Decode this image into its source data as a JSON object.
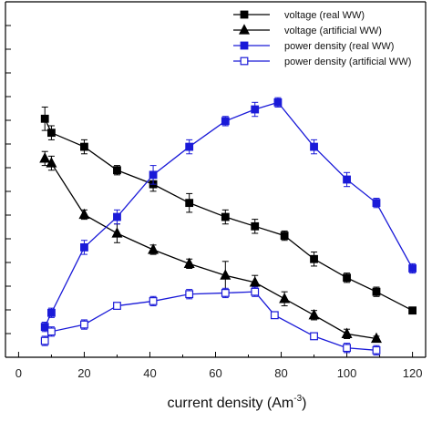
{
  "chart_data": {
    "type": "line",
    "title": "",
    "xlabel": "current density (Am",
    "xlabel_sup": "-3",
    "xlabel_close": ")",
    "ylabel": "",
    "xlim": [
      -4,
      124
    ],
    "ylim": [
      0,
      15.2
    ],
    "x_ticks": [
      0,
      20,
      40,
      60,
      80,
      100,
      120
    ],
    "y_tick_count": 15,
    "grid": false,
    "legend_position": "top-right",
    "series": [
      {
        "name": "voltage (real WW)",
        "color": "#000000",
        "marker": "square",
        "filled": true,
        "x": [
          8,
          10,
          20,
          30,
          41,
          52,
          63,
          72,
          81,
          90,
          100,
          109,
          120
        ],
        "y": [
          10.2,
          9.6,
          9.0,
          8.0,
          7.4,
          6.6,
          6.0,
          5.6,
          5.2,
          4.2,
          3.4,
          2.8,
          2.0
        ],
        "err": [
          0.5,
          0.3,
          0.3,
          0.2,
          0.3,
          0.4,
          0.3,
          0.3,
          0.2,
          0.3,
          0.2,
          0.2,
          0.1
        ]
      },
      {
        "name": "voltage (artificial WW)",
        "color": "#000000",
        "marker": "triangle",
        "filled": true,
        "x": [
          8,
          10,
          20,
          30,
          41,
          52,
          63,
          72,
          81,
          90,
          100,
          109
        ],
        "y": [
          8.5,
          8.3,
          6.1,
          5.3,
          4.6,
          4.0,
          3.5,
          3.2,
          2.5,
          1.8,
          1.0,
          0.8
        ],
        "err": [
          0.3,
          0.3,
          0.2,
          0.4,
          0.2,
          0.2,
          0.6,
          0.3,
          0.3,
          0.2,
          0.2,
          0.1
        ]
      },
      {
        "name": "power density (real WW)",
        "color": "#1a1ad8",
        "marker": "square",
        "filled": true,
        "x": [
          8,
          10,
          20,
          30,
          41,
          52,
          63,
          72,
          79,
          90,
          100,
          109,
          120
        ],
        "y": [
          1.3,
          1.9,
          4.7,
          6.0,
          7.8,
          9.0,
          10.1,
          10.6,
          10.9,
          9.0,
          7.6,
          6.6,
          3.8
        ],
        "err": [
          0.2,
          0.2,
          0.3,
          0.3,
          0.4,
          0.3,
          0.2,
          0.3,
          0.2,
          0.3,
          0.3,
          0.2,
          0.2
        ]
      },
      {
        "name": "power density (artificial WW)",
        "color": "#1a1ad8",
        "marker": "square",
        "filled": false,
        "x": [
          8,
          10,
          20,
          30,
          41,
          52,
          63,
          72,
          78,
          90,
          100,
          109
        ],
        "y": [
          0.7,
          1.1,
          1.4,
          2.2,
          2.4,
          2.7,
          2.75,
          2.8,
          1.8,
          0.9,
          0.4,
          0.3
        ],
        "err": [
          0.2,
          0.2,
          0.2,
          0.1,
          0.2,
          0.2,
          0.2,
          0.2,
          0.1,
          0.1,
          0.2,
          0.2
        ]
      }
    ]
  }
}
